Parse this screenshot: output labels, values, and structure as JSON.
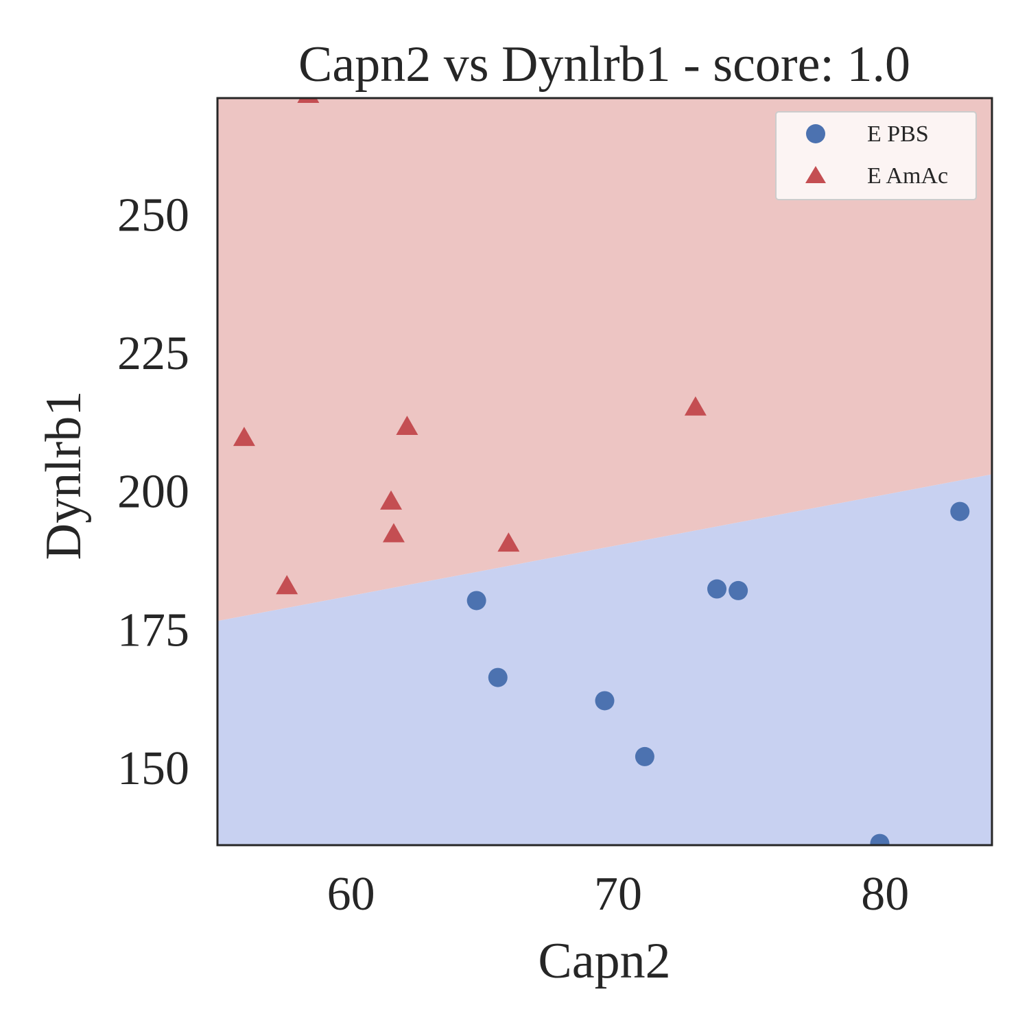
{
  "chart_data": {
    "type": "scatter",
    "title": "Capn2 vs Dynlrb1 - score: 1.0",
    "xlabel": "Capn2",
    "ylabel": "Dynlrb1",
    "xlim": [
      55,
      84
    ],
    "ylim": [
      136,
      271
    ],
    "xticks": [
      60,
      70,
      80
    ],
    "yticks": [
      150,
      175,
      200,
      225,
      250
    ],
    "grid": false,
    "legend_position": "top-right",
    "decision_boundary": {
      "points": [
        [
          55,
          176.5
        ],
        [
          84,
          203
        ]
      ],
      "above_color": "#edc5c3",
      "below_color": "#c8d1f1"
    },
    "series": [
      {
        "name": "E PBS",
        "marker": "circle",
        "color": "#4c72b0",
        "points": [
          [
            64.7,
            180.2
          ],
          [
            65.5,
            166.3
          ],
          [
            69.5,
            162.1
          ],
          [
            71.0,
            152.0
          ],
          [
            73.7,
            182.3
          ],
          [
            74.5,
            182.0
          ],
          [
            79.8,
            136.3
          ],
          [
            82.8,
            196.3
          ]
        ]
      },
      {
        "name": "E AmAc",
        "marker": "triangle",
        "color": "#c44e52",
        "points": [
          [
            58.4,
            271.5
          ],
          [
            56.0,
            209.5
          ],
          [
            62.1,
            211.5
          ],
          [
            61.5,
            198.0
          ],
          [
            61.6,
            192.1
          ],
          [
            57.6,
            182.7
          ],
          [
            65.9,
            190.4
          ],
          [
            72.9,
            215.0
          ]
        ]
      }
    ]
  }
}
